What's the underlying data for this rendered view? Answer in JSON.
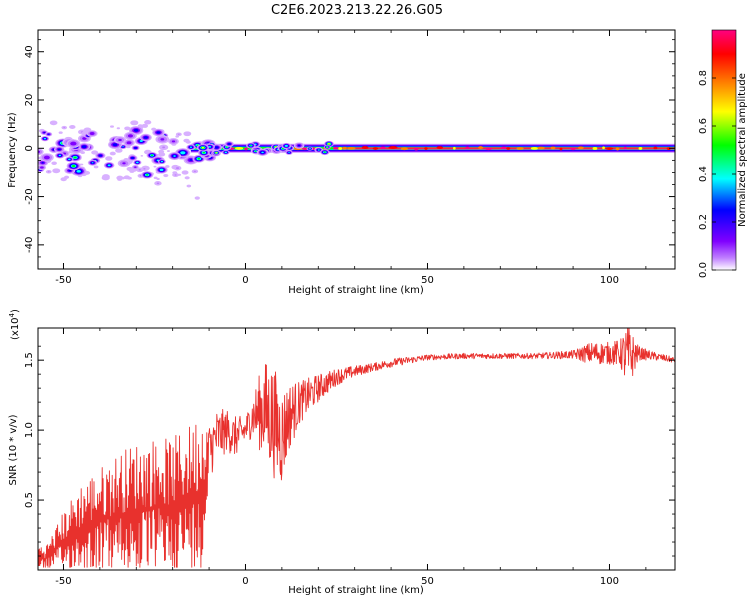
{
  "title": "C2E6.2023.213.22.26.G05",
  "chart_data": [
    {
      "type": "heatmap",
      "title": "C2E6.2023.213.22.26.G05",
      "xlabel": "Height of straight line (km)",
      "ylabel": "Frequency (Hz)",
      "xlim": [
        -57,
        118
      ],
      "ylim": [
        -50,
        49
      ],
      "xticks": [
        -50,
        0,
        50,
        100
      ],
      "yticks": [
        -40,
        -20,
        0,
        20,
        40
      ],
      "grid": false,
      "ridge": {
        "description": "spectral ridge near 0 Hz, broadening and noisy at low heights",
        "center_hz": 0,
        "height_range_km": [
          -57,
          118
        ]
      },
      "colorbar": {
        "label": "Normalized spectral amplitude",
        "range": [
          0.0,
          1.0
        ],
        "ticks": [
          0.0,
          0.2,
          0.4,
          0.6,
          0.8
        ],
        "colormap": [
          "#ffffff",
          "#c080ff",
          "#8000ff",
          "#0000ff",
          "#00ffff",
          "#00ff00",
          "#ffff00",
          "#ff8000",
          "#ff0000",
          "#ff0080"
        ]
      }
    },
    {
      "type": "line",
      "xlabel": "Height of straight line (km)",
      "ylabel": "SNR (10 * v/v)",
      "y_scale_label": "(x10",
      "y_scale_exponent": "4",
      "xlim": [
        -57,
        118
      ],
      "ylim": [
        0,
        1.73
      ],
      "xticks": [
        -50,
        0,
        50,
        100
      ],
      "yticks": [
        0.5,
        1.0,
        1.5
      ],
      "ytick_labels": [
        "0.5",
        "1.0",
        "1.5"
      ],
      "grid": false,
      "series": [
        {
          "name": "SNR",
          "color": "#e8312d",
          "x": [
            -57,
            -55,
            -52,
            -50,
            -45,
            -40,
            -35,
            -30,
            -25,
            -20,
            -15,
            -12,
            -10,
            -8,
            -5,
            -3,
            0,
            2,
            5,
            7,
            8,
            10,
            12,
            15,
            20,
            25,
            30,
            35,
            40,
            50,
            60,
            70,
            80,
            90,
            95,
            100,
            103,
            105,
            108,
            112,
            118
          ],
          "mean": [
            0.1,
            0.08,
            0.15,
            0.2,
            0.3,
            0.35,
            0.4,
            0.42,
            0.45,
            0.45,
            0.5,
            0.55,
            0.85,
            0.95,
            1.0,
            0.95,
            1.0,
            1.1,
            1.15,
            1.1,
            1.05,
            0.95,
            1.1,
            1.2,
            1.3,
            1.38,
            1.42,
            1.45,
            1.48,
            1.52,
            1.53,
            1.53,
            1.53,
            1.54,
            1.55,
            1.55,
            1.55,
            1.52,
            1.55,
            1.53,
            1.5
          ],
          "spread": [
            0.08,
            0.08,
            0.15,
            0.2,
            0.3,
            0.35,
            0.4,
            0.45,
            0.45,
            0.45,
            0.5,
            0.55,
            0.2,
            0.2,
            0.15,
            0.15,
            0.1,
            0.15,
            0.35,
            0.4,
            0.4,
            0.35,
            0.25,
            0.15,
            0.1,
            0.06,
            0.04,
            0.03,
            0.03,
            0.02,
            0.02,
            0.02,
            0.02,
            0.03,
            0.08,
            0.08,
            0.1,
            0.25,
            0.05,
            0.03,
            0.02
          ]
        }
      ]
    }
  ]
}
